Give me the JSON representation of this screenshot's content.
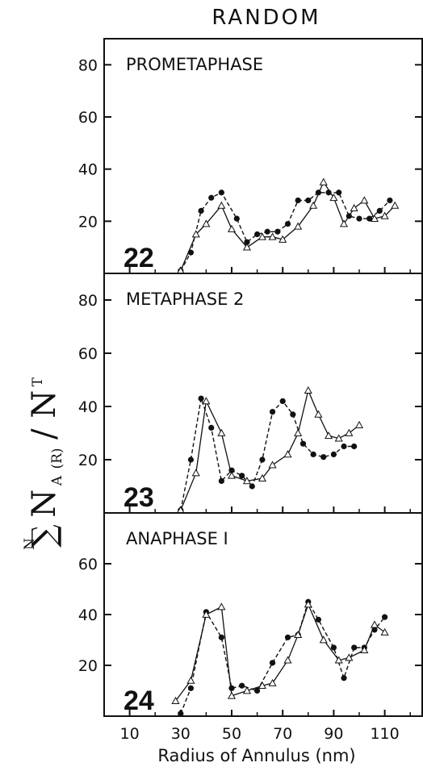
{
  "figure": {
    "title": "RANDOM",
    "xlabel": "Radius of Annulus (nm)",
    "ylabel": {
      "sum_sup": "N",
      "sum": "∑",
      "main": "N",
      "sub": "A",
      "paren": "(R)",
      "slash": "/ N",
      "sup": "T"
    }
  },
  "colors": {
    "ink": "#111111",
    "background": "#ffffff"
  },
  "chart_data": [
    {
      "type": "line",
      "panel_label": "PROMETAPHASE",
      "figure_number": "22",
      "xlim": [
        0,
        125
      ],
      "ylim": [
        0,
        90
      ],
      "xticks": [
        10,
        30,
        50,
        70,
        90,
        110
      ],
      "yticks": [
        20,
        40,
        60,
        80
      ],
      "grid": false,
      "series": [
        {
          "marker": "filled-circle",
          "line": "dashed",
          "x": [
            30,
            34,
            38,
            42,
            46,
            52,
            56,
            60,
            64,
            68,
            72,
            76,
            80,
            84,
            88,
            92,
            96,
            100,
            104,
            108,
            112
          ],
          "y": [
            1,
            8,
            24,
            29,
            31,
            21,
            12,
            15,
            16,
            16,
            19,
            28,
            28,
            31,
            31,
            31,
            22,
            21,
            21,
            24,
            28
          ]
        },
        {
          "marker": "open-triangle",
          "line": "solid",
          "x": [
            30,
            36,
            40,
            46,
            50,
            56,
            62,
            66,
            70,
            76,
            82,
            86,
            90,
            94,
            98,
            102,
            106,
            110,
            114
          ],
          "y": [
            1,
            15,
            19,
            26,
            17,
            10,
            14,
            14,
            13,
            18,
            26,
            35,
            29,
            19,
            25,
            28,
            21,
            22,
            26
          ]
        }
      ]
    },
    {
      "type": "line",
      "panel_label": "METAPHASE 2",
      "figure_number": "23",
      "xlim": [
        0,
        125
      ],
      "ylim": [
        0,
        90
      ],
      "xticks": [
        10,
        30,
        50,
        70,
        90,
        110
      ],
      "yticks": [
        20,
        40,
        60,
        80
      ],
      "grid": false,
      "series": [
        {
          "marker": "filled-circle",
          "line": "dashed",
          "x": [
            30,
            34,
            38,
            42,
            46,
            50,
            54,
            58,
            62,
            66,
            70,
            74,
            78,
            82,
            86,
            90,
            94,
            98
          ],
          "y": [
            1,
            20,
            43,
            32,
            12,
            16,
            14,
            10,
            20,
            38,
            42,
            37,
            26,
            22,
            21,
            22,
            25,
            25
          ]
        },
        {
          "marker": "open-triangle",
          "line": "solid",
          "x": [
            30,
            36,
            40,
            46,
            50,
            56,
            62,
            66,
            72,
            76,
            80,
            84,
            88,
            92,
            96,
            100
          ],
          "y": [
            1,
            15,
            42,
            30,
            14,
            12,
            13,
            18,
            22,
            30,
            46,
            37,
            29,
            28,
            30,
            33
          ]
        }
      ]
    },
    {
      "type": "line",
      "panel_label": "ANAPHASE I",
      "figure_number": "24",
      "xlim": [
        0,
        125
      ],
      "ylim": [
        0,
        80
      ],
      "xticks": [
        10,
        30,
        50,
        70,
        90,
        110
      ],
      "yticks": [
        20,
        40,
        60
      ],
      "grid": false,
      "series": [
        {
          "marker": "filled-circle",
          "line": "dashed",
          "x": [
            30,
            34,
            40,
            46,
            50,
            54,
            60,
            66,
            72,
            76,
            80,
            84,
            90,
            94,
            98,
            102,
            106,
            110
          ],
          "y": [
            1,
            11,
            41,
            31,
            11,
            12,
            10,
            21,
            31,
            32,
            45,
            38,
            27,
            15,
            27,
            27,
            34,
            39
          ]
        },
        {
          "marker": "open-triangle",
          "line": "solid",
          "x": [
            28,
            34,
            40,
            46,
            50,
            56,
            62,
            66,
            72,
            76,
            80,
            86,
            92,
            96,
            102,
            106,
            110
          ],
          "y": [
            6,
            14,
            40,
            43,
            8,
            10,
            12,
            13,
            22,
            32,
            44,
            30,
            22,
            23,
            26,
            36,
            33
          ]
        }
      ]
    }
  ]
}
